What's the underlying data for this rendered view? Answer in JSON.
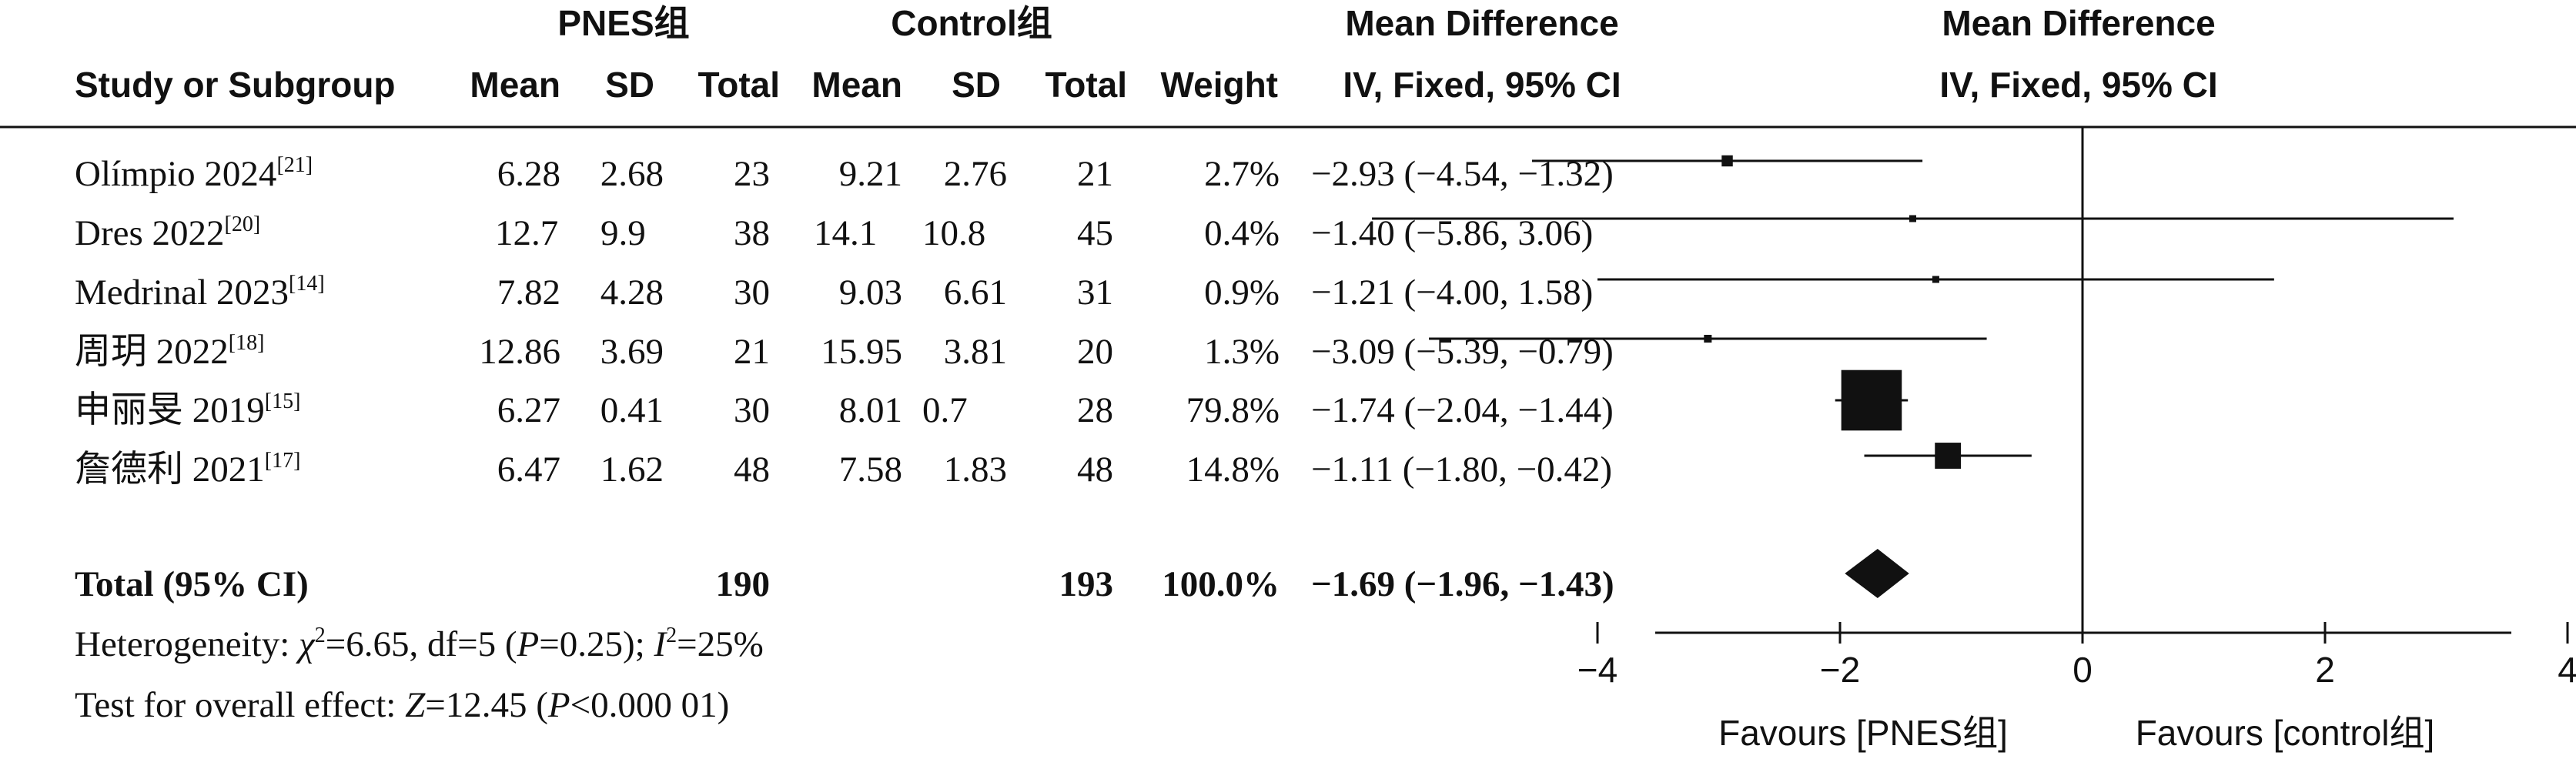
{
  "table": {
    "group_headers": {
      "pnes": "PNES组",
      "control": "Control组"
    },
    "md_header_1": "Mean Difference",
    "md_header_2": "IV, Fixed, 95% CI",
    "plot_header_1": "Mean Difference",
    "plot_header_2": "IV, Fixed, 95% CI",
    "col_study": "Study or Subgroup",
    "col_mean_1": "Mean",
    "col_sd_1": "SD",
    "col_total_1": "Total",
    "col_mean_2": "Mean",
    "col_sd_2": "SD",
    "col_total_2": "Total",
    "col_weight": "Weight",
    "rows": [
      {
        "study": "Olímpio 2024",
        "ref": "[21]",
        "m1": "6.28",
        "sd1": "2.68",
        "n1": "23",
        "m2": "9.21",
        "sd2": "2.76",
        "n2": "21",
        "weight": "2.7%",
        "ci": "−2.93 (−4.54, −1.32)"
      },
      {
        "study": "Dres 2022",
        "ref": "[20]",
        "m1": "12.7",
        "sd1": "9.9",
        "n1": "38",
        "m2": "14.1",
        "sd2": "10.8",
        "n2": "45",
        "weight": "0.4%",
        "ci": "−1.40 (−5.86, 3.06)"
      },
      {
        "study": "Medrinal 2023",
        "ref": "[14]",
        "m1": "7.82",
        "sd1": "4.28",
        "n1": "30",
        "m2": "9.03",
        "sd2": "6.61",
        "n2": "31",
        "weight": "0.9%",
        "ci": "−1.21 (−4.00, 1.58)"
      },
      {
        "study": "周玥 2022",
        "ref": "[18]",
        "m1": "12.86",
        "sd1": "3.69",
        "n1": "21",
        "m2": "15.95",
        "sd2": "3.81",
        "n2": "20",
        "weight": "1.3%",
        "ci": "−3.09 (−5.39, −0.79)"
      },
      {
        "study": "申丽旻 2019",
        "ref": "[15]",
        "m1": "6.27",
        "sd1": "0.41",
        "n1": "30",
        "m2": "8.01",
        "sd2": "0.7",
        "n2": "28",
        "weight": "79.8%",
        "ci": "−1.74 (−2.04, −1.44)"
      },
      {
        "study": "詹德利 2021",
        "ref": "[17]",
        "m1": "6.47",
        "sd1": "1.62",
        "n1": "48",
        "m2": "7.58",
        "sd2": "1.83",
        "n2": "48",
        "weight": "14.8%",
        "ci": "−1.11 (−1.80, −0.42)"
      }
    ],
    "total": {
      "label": "Total (95% CI)",
      "n1": "190",
      "n2": "193",
      "weight": "100.0%",
      "ci": "−1.69 (−1.96, −1.43)"
    },
    "heterogeneity": {
      "prefix": "Heterogeneity: ",
      "chi_sym": "χ",
      "chi_exp": "2",
      "chi_rest": "=6.65, df=5 (",
      "p_sym": "P",
      "p_rest": "=0.25); ",
      "i_sym": "I",
      "i_exp": "2",
      "i_rest": "=25%"
    },
    "overall": {
      "prefix": "Test for overall effect: ",
      "z_sym": "Z",
      "z_rest": "=12.45 (",
      "p_sym": "P",
      "p_rest": "<0.000 01)"
    }
  },
  "chart_data": {
    "type": "forest",
    "xlabel_left": "Favours [PNES组]",
    "xlabel_right": "Favours [control组]",
    "xlim": [
      -7,
      7
    ],
    "xticks": [
      -4,
      -2,
      0,
      2,
      4
    ],
    "studies": [
      {
        "name": "Olímpio 2024",
        "md": -2.93,
        "lo": -4.54,
        "hi": -1.32,
        "weight": 2.7
      },
      {
        "name": "Dres 2022",
        "md": -1.4,
        "lo": -5.86,
        "hi": 3.06,
        "weight": 0.4
      },
      {
        "name": "Medrinal 2023",
        "md": -1.21,
        "lo": -4.0,
        "hi": 1.58,
        "weight": 0.9
      },
      {
        "name": "周玥 2022",
        "md": -3.09,
        "lo": -5.39,
        "hi": -0.79,
        "weight": 1.3
      },
      {
        "name": "申丽旻 2019",
        "md": -1.74,
        "lo": -2.04,
        "hi": -1.44,
        "weight": 79.8
      },
      {
        "name": "詹德利 2021",
        "md": -1.11,
        "lo": -1.8,
        "hi": -0.42,
        "weight": 14.8
      }
    ],
    "overall": {
      "md": -1.69,
      "lo": -1.96,
      "hi": -1.43
    },
    "colors": {
      "ink": "#111111"
    }
  }
}
